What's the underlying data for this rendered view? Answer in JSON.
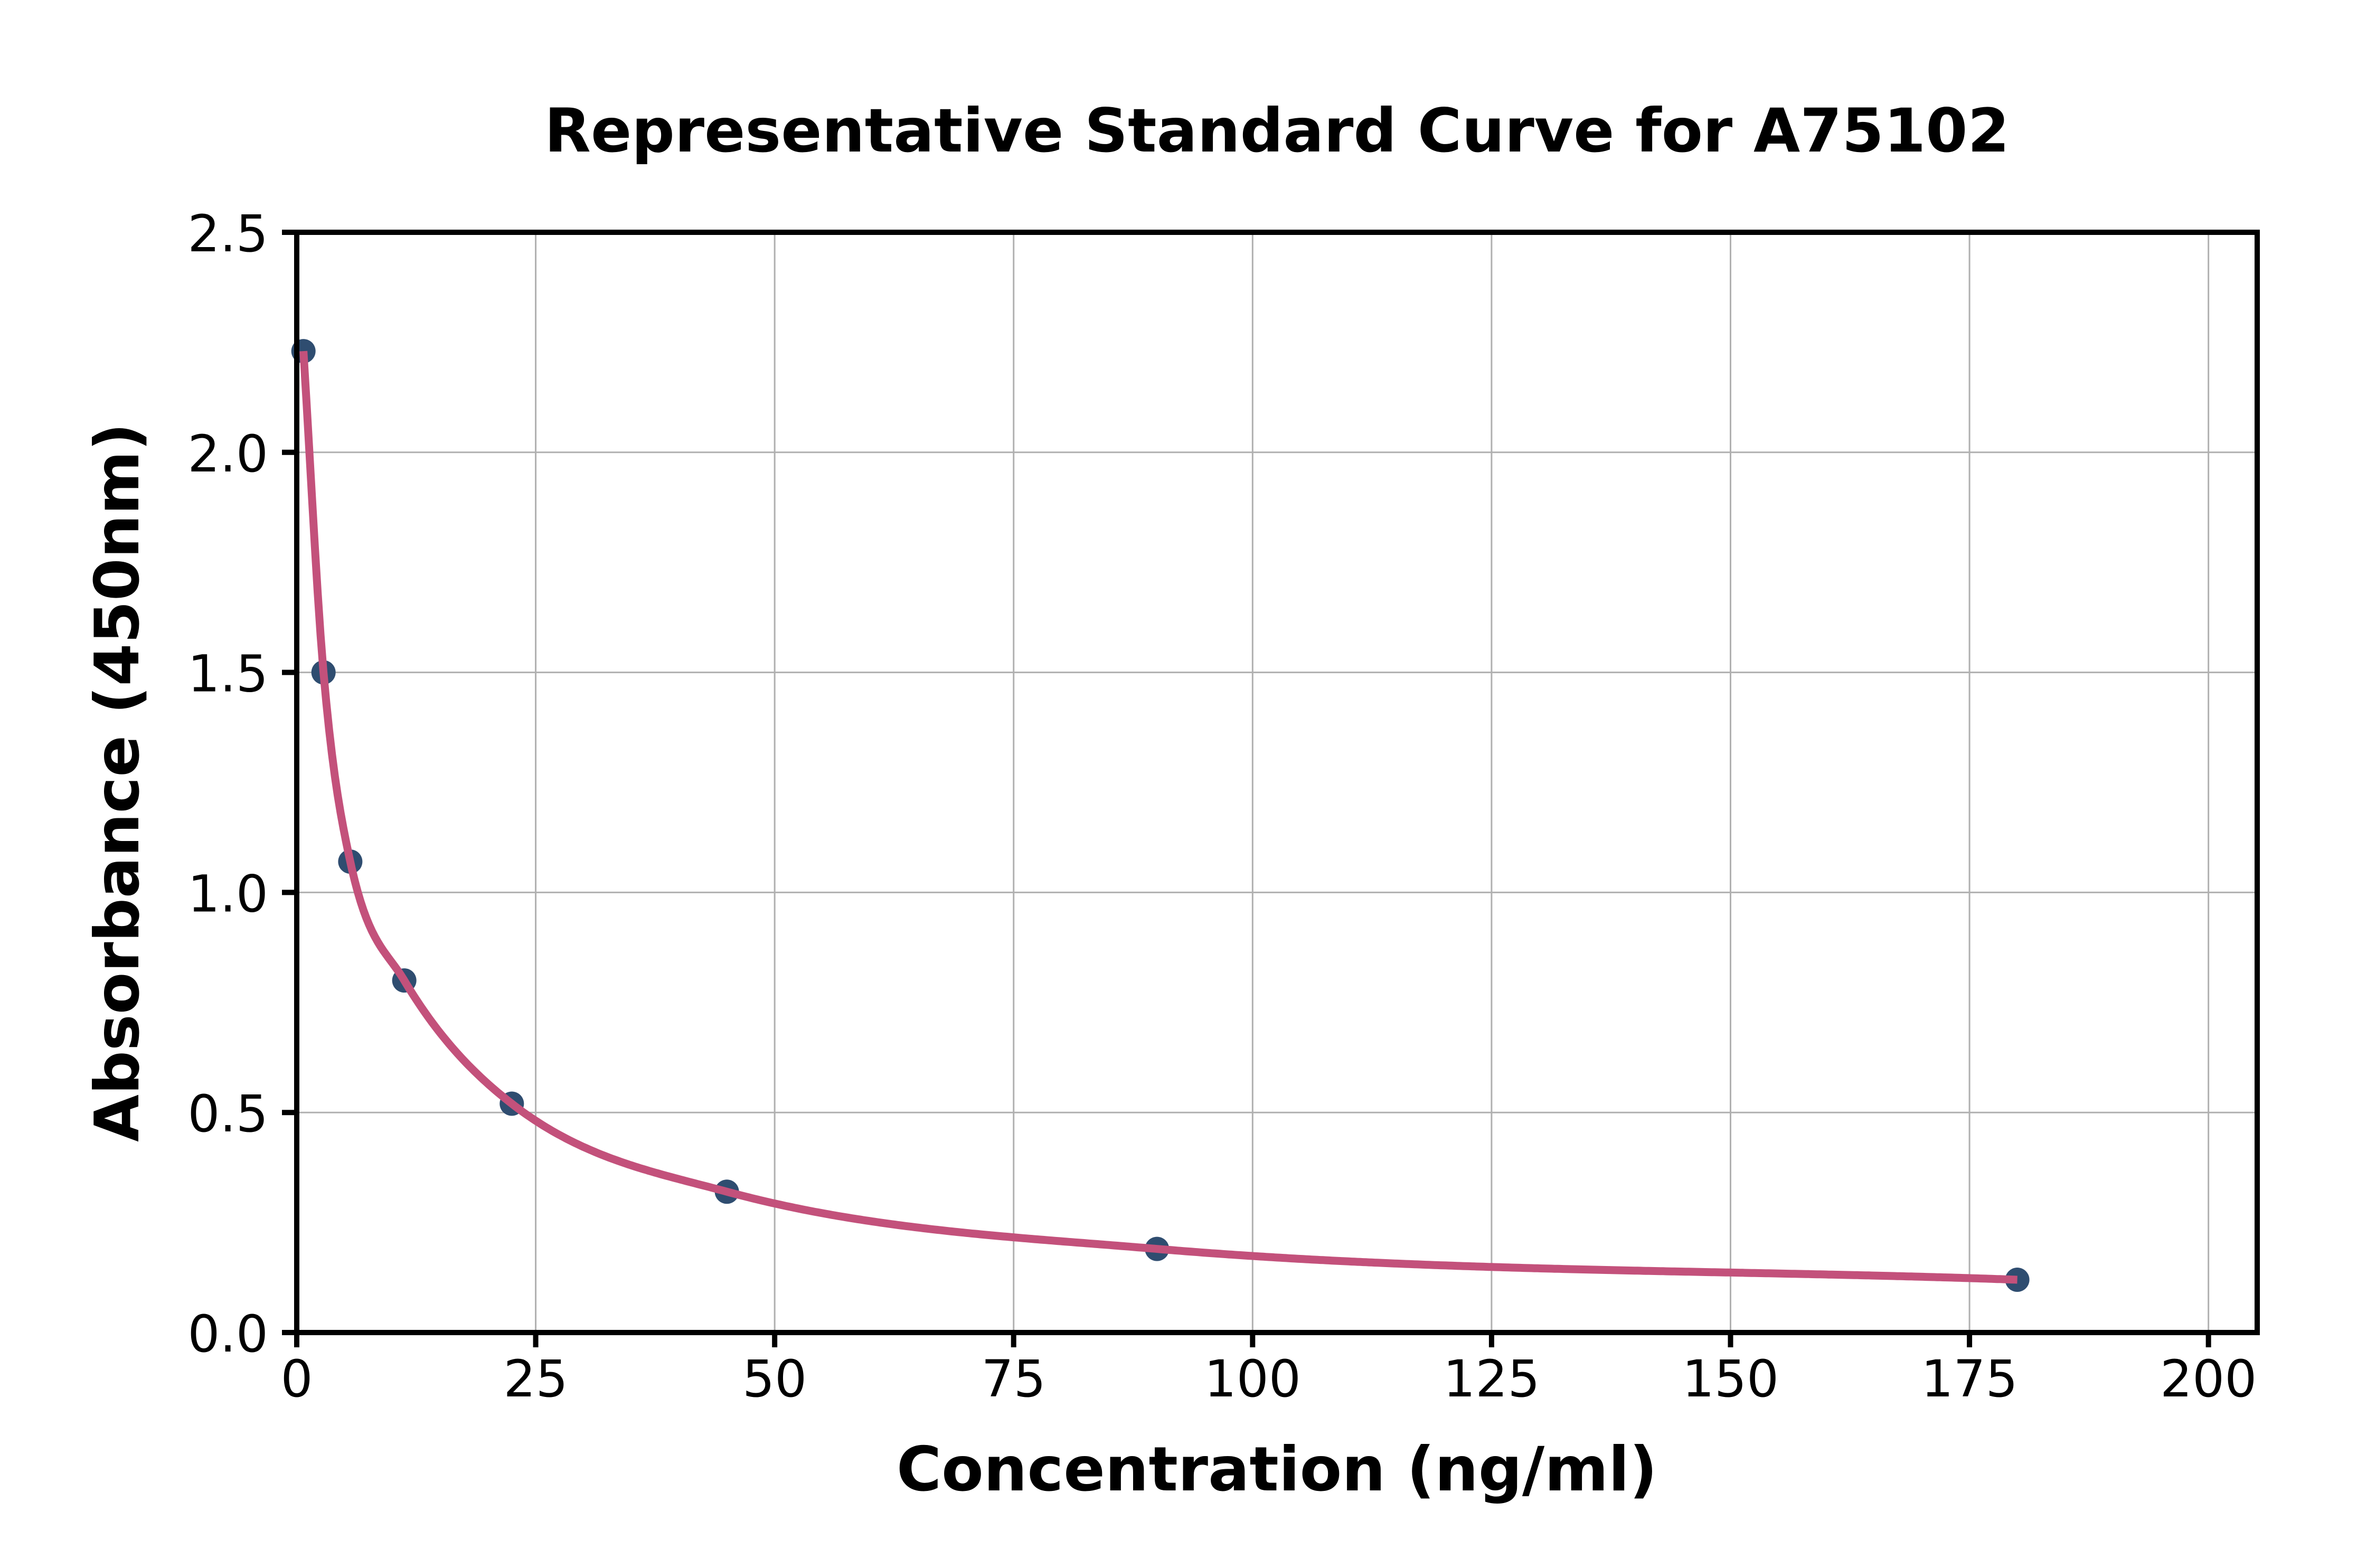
{
  "chart_data": {
    "type": "scatter",
    "title": "Representative Standard Curve for A75102",
    "xlabel": "Concentration (ng/ml)",
    "ylabel": "Absorbance (450nm)",
    "xlim": [
      0,
      205.1
    ],
    "ylim": [
      0,
      2.5
    ],
    "x_tick_values": [
      0,
      25,
      50,
      75,
      100,
      125,
      150,
      175,
      200
    ],
    "x_tick_labels": [
      "0",
      "25",
      "50",
      "75",
      "100",
      "125",
      "150",
      "175",
      "200"
    ],
    "y_tick_values": [
      0,
      0.5,
      1.0,
      1.5,
      2.0,
      2.5
    ],
    "y_tick_labels": [
      "0.0",
      "0.5",
      "1.0",
      "1.5",
      "2.0",
      "2.5"
    ],
    "grid": true,
    "legend": "none",
    "series": [
      {
        "name": "standards",
        "type": "scatter",
        "x": [
          0.7,
          2.8,
          5.6,
          11.25,
          22.5,
          45,
          90,
          180
        ],
        "y": [
          2.23,
          1.5,
          1.07,
          0.8,
          0.52,
          0.32,
          0.19,
          0.12
        ]
      },
      {
        "name": "fitted-curve",
        "type": "line",
        "x_range": [
          0.7,
          180
        ]
      }
    ],
    "colors": {
      "curve": "#c3517b",
      "marker": "#2f4d70",
      "grid": "#b0b0b0",
      "spine": "#000000",
      "background": "#ffffff",
      "text": "#000000"
    }
  }
}
